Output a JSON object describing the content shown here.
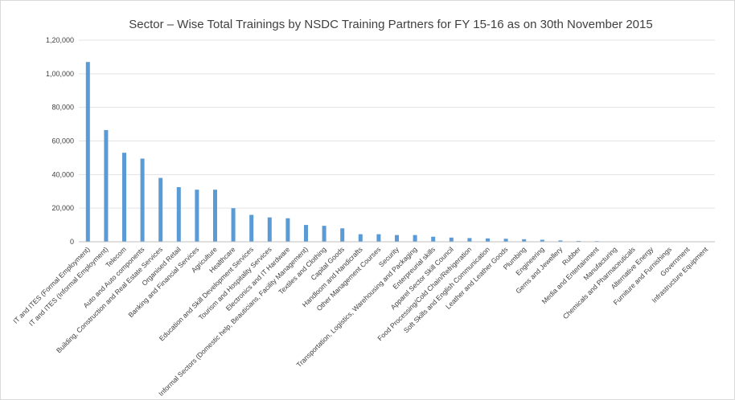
{
  "chart_data": {
    "type": "bar",
    "title": "Sector – Wise Total Trainings by NSDC Training Partners for FY 15-16 as on 30th  November 2015",
    "xlabel": "",
    "ylabel": "",
    "ylim": [
      0,
      120000
    ],
    "yticks": [
      0,
      20000,
      40000,
      60000,
      80000,
      100000,
      120000
    ],
    "ytick_labels": [
      "0",
      "20,000",
      "40,000",
      "60,000",
      "80,000",
      "1,00,000",
      "1,20,000"
    ],
    "grid": true,
    "legend": "none",
    "bar_color": "#5b9bd5",
    "categories": [
      "IT and ITES (Formal Employment)",
      "IT and ITES (Informal Employment)",
      "Telecom",
      "Auto and Auto components",
      "Building, Construction and Real Estate Services",
      "Organised Retail",
      "Banking and Financial Services",
      "Agriculture",
      "Healthcare",
      "Education and Skill Development Services",
      "Tourism and Hospitality Services",
      "Electronics and IT Hardware",
      "Informal Sectors (Domestic help, Beauticians, Facility Management)",
      "Textiles and Clothing",
      "Capital Goods",
      "Handloom and Handicrafts",
      "Other Management Courses",
      "Security",
      "Transportation, Logistics, Warehousing and Packaging",
      "Enterpreurial skills",
      "Apparel Sector Skill Council",
      "Food Processing/Cold Chain/Refrigeration",
      "Soft Skills and English Communication",
      "Leather and Leather Goods",
      "Plumbing",
      "Engineering",
      "Gems and Jewellery",
      "Rubber",
      "Media and Entertainment",
      "Manufacturing",
      "Chemicals and Pharmaceuticals",
      "Alternative Energy",
      "Furniture and Furnishings",
      "Government",
      "Infrastructure Equipment"
    ],
    "values": [
      107000,
      66500,
      53000,
      49500,
      38000,
      32500,
      31000,
      31000,
      20000,
      16000,
      14500,
      14000,
      10000,
      9500,
      8000,
      4500,
      4500,
      4000,
      4000,
      3000,
      2500,
      2200,
      2000,
      1800,
      1500,
      1200,
      800,
      500,
      400,
      200,
      150,
      100,
      80,
      50,
      30
    ]
  }
}
